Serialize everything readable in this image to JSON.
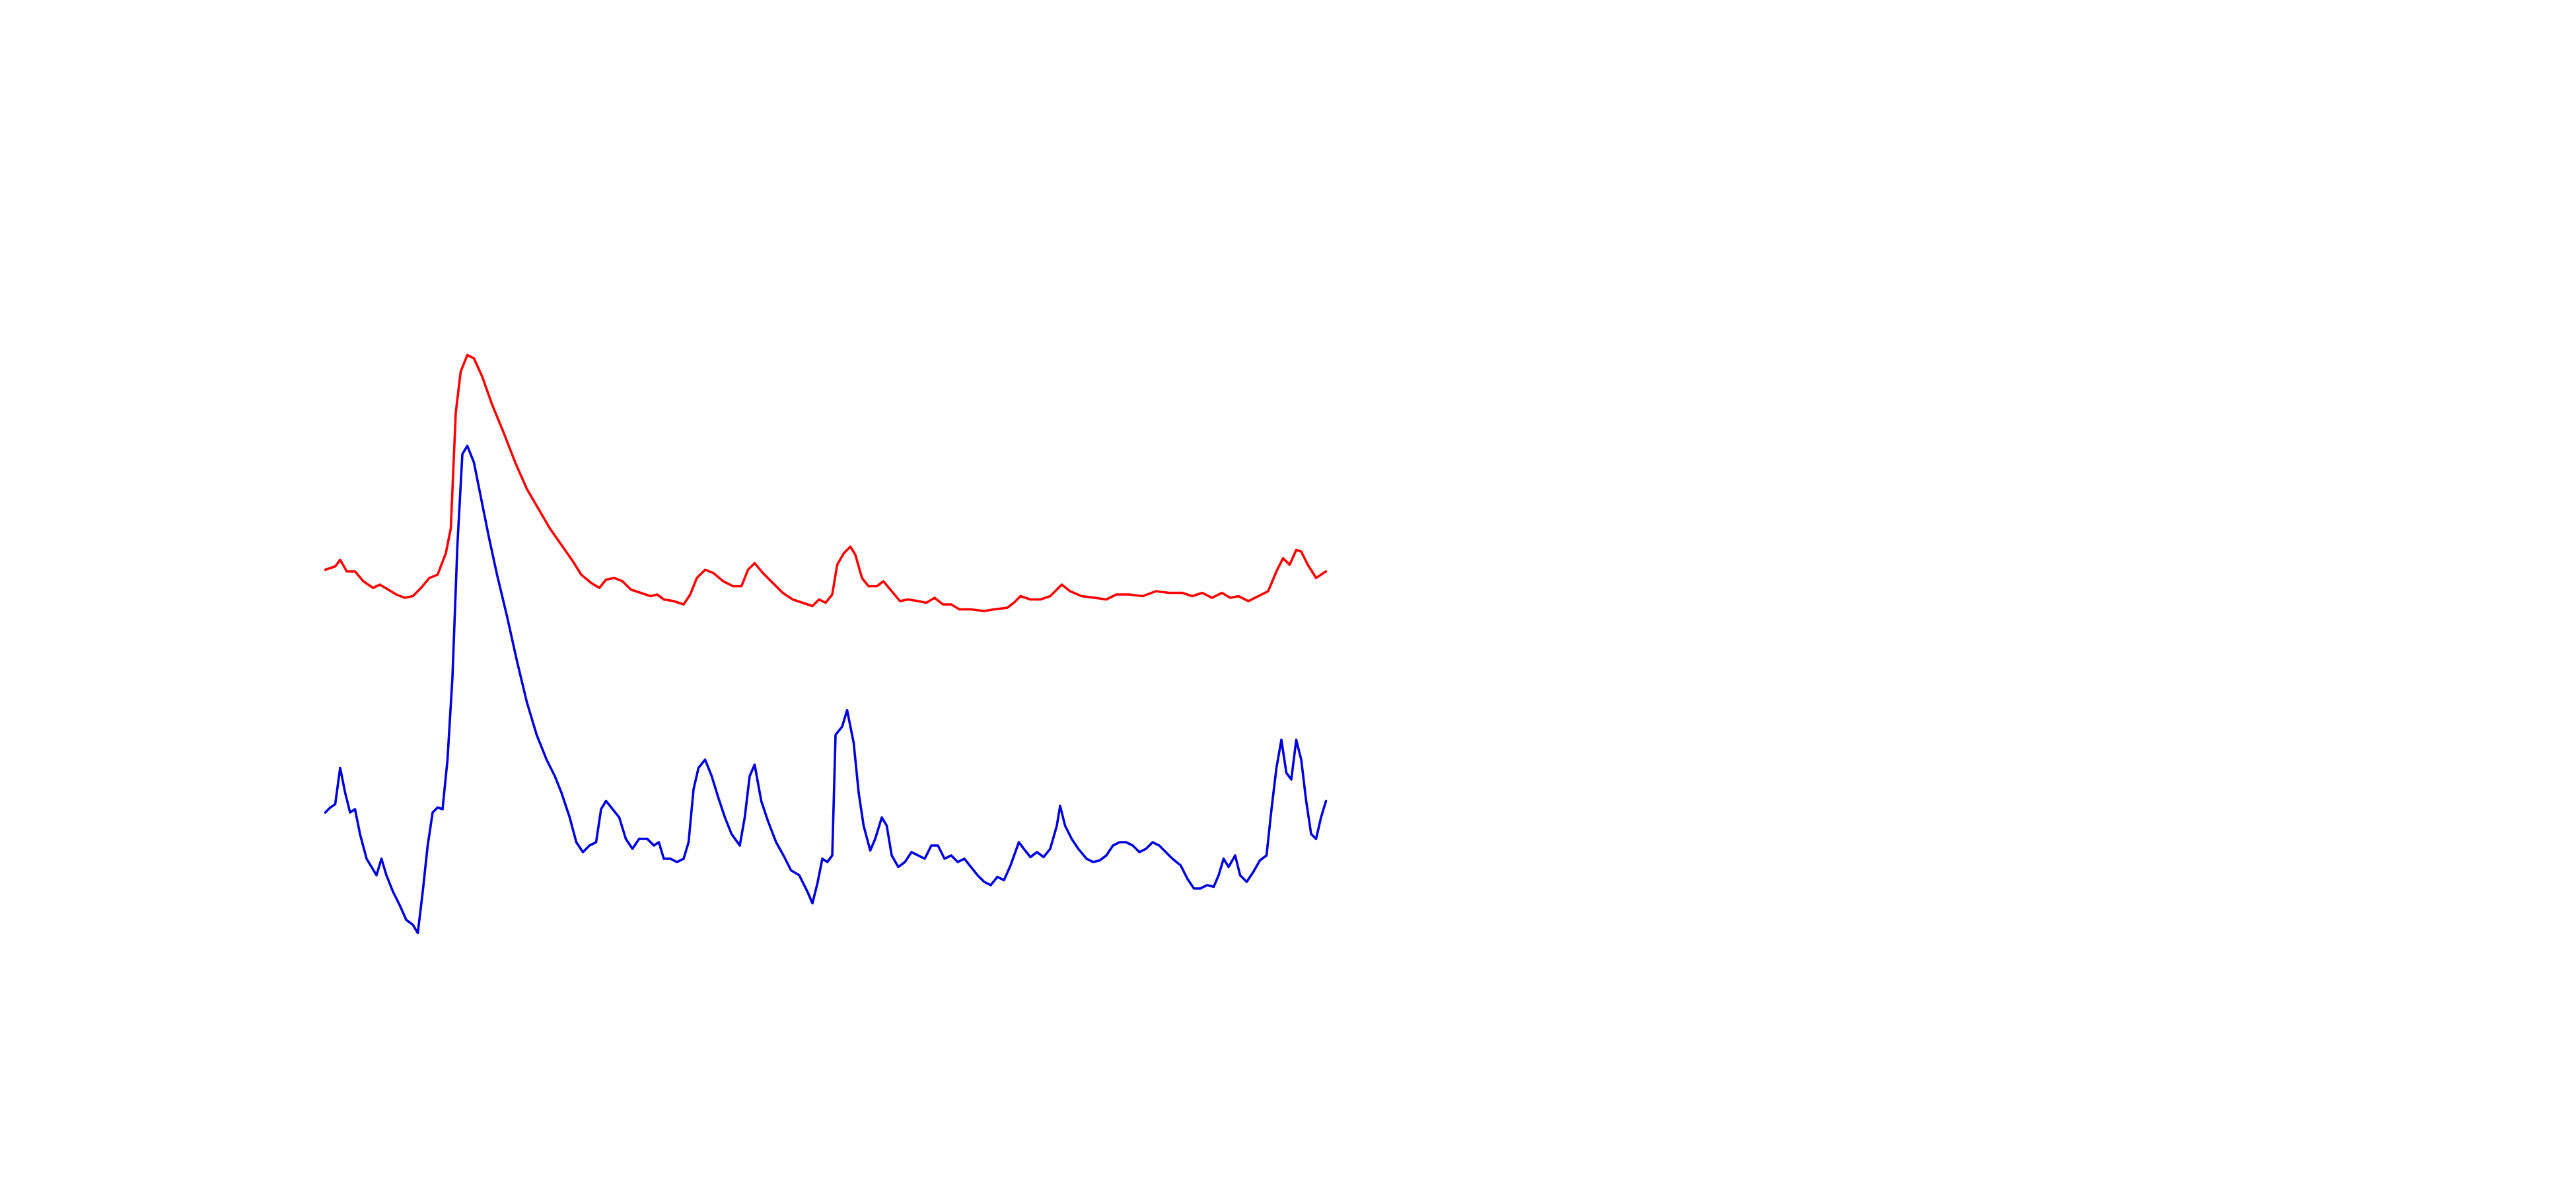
{
  "chart_data": {
    "type": "line",
    "xlim": [
      0,
      1560
    ],
    "ylim": [
      720,
      0
    ],
    "series": [
      {
        "color": "#ff0000",
        "x": [
          197,
          203,
          206,
          210,
          215,
          220,
          226,
          230,
          235,
          240,
          245,
          250,
          255,
          260,
          265,
          270,
          273,
          276,
          279,
          283,
          287,
          292,
          298,
          305,
          312,
          319,
          326,
          333,
          340,
          347,
          352,
          358,
          363,
          367,
          372,
          377,
          382,
          388,
          394,
          398,
          402,
          408,
          414,
          418,
          422,
          427,
          432,
          438,
          444,
          449,
          453,
          457,
          462,
          468,
          474,
          480,
          486,
          492,
          496,
          500,
          504,
          507,
          511,
          515,
          518,
          522,
          526,
          531,
          535,
          540,
          545,
          550,
          556,
          561,
          566,
          571,
          576,
          581,
          588,
          596,
          602,
          610,
          614,
          618,
          624,
          630,
          636,
          640,
          643,
          648,
          655,
          663,
          670,
          676,
          684,
          692,
          700,
          708,
          716,
          722,
          728,
          734,
          740,
          745,
          750,
          756,
          762,
          768,
          773,
          777,
          781,
          785,
          788,
          792,
          797,
          803
        ],
        "values": [
          345,
          343,
          339,
          346,
          346,
          352,
          356,
          354,
          357,
          360,
          362,
          361,
          356,
          350,
          348,
          335,
          320,
          250,
          225,
          215,
          217,
          228,
          245,
          262,
          280,
          296,
          308,
          320,
          330,
          340,
          348,
          353,
          356,
          351,
          350,
          352,
          357,
          359,
          361,
          360,
          363,
          364,
          366,
          360,
          350,
          345,
          347,
          352,
          355,
          355,
          345,
          341,
          347,
          353,
          359,
          363,
          365,
          367,
          363,
          365,
          360,
          342,
          335,
          331,
          336,
          350,
          355,
          355,
          352,
          358,
          364,
          363,
          364,
          365,
          362,
          366,
          366,
          369,
          369,
          370,
          369,
          368,
          365,
          361,
          363,
          363,
          361,
          357,
          354,
          358,
          361,
          362,
          363,
          360,
          360,
          361,
          358,
          359,
          359,
          361,
          359,
          362,
          359,
          362,
          361,
          364,
          361,
          358,
          346,
          338,
          342,
          333,
          334,
          342,
          350,
          346
        ]
      },
      {
        "color": "#0000dd",
        "x": [
          197,
          200,
          203,
          206,
          209,
          212,
          215,
          218,
          222,
          225,
          228,
          231,
          234,
          238,
          242,
          246,
          250,
          253,
          256,
          259,
          262,
          265,
          268,
          271,
          274,
          277,
          280,
          283,
          287,
          291,
          296,
          301,
          307,
          313,
          319,
          325,
          331,
          336,
          340,
          345,
          349,
          353,
          357,
          361,
          364,
          367,
          371,
          375,
          379,
          383,
          387,
          392,
          396,
          399,
          402,
          406,
          410,
          414,
          417,
          420,
          423,
          427,
          431,
          435,
          439,
          443,
          448,
          451,
          454,
          457,
          461,
          465,
          470,
          475,
          479,
          484,
          489,
          492,
          495,
          498,
          501,
          504,
          506,
          510,
          513,
          517,
          520,
          523,
          527,
          530,
          534,
          537,
          540,
          544,
          548,
          552,
          556,
          560,
          564,
          568,
          572,
          576,
          580,
          584,
          588,
          592,
          596,
          600,
          604,
          608,
          612,
          617,
          620,
          624,
          628,
          632,
          636,
          640,
          642,
          645,
          649,
          653,
          658,
          662,
          666,
          670,
          674,
          678,
          682,
          686,
          690,
          694,
          698,
          702,
          706,
          710,
          715,
          719,
          723,
          727,
          731,
          735,
          738,
          741,
          744,
          748,
          751,
          755,
          759,
          763,
          767,
          770,
          773,
          776,
          779,
          782,
          785,
          788,
          791,
          794,
          797,
          800,
          803
        ],
        "values": [
          492,
          489,
          487,
          465,
          480,
          492,
          490,
          505,
          520,
          525,
          530,
          520,
          530,
          540,
          548,
          557,
          560,
          565,
          540,
          512,
          492,
          489,
          490,
          460,
          410,
          330,
          275,
          270,
          280,
          300,
          325,
          348,
          373,
          400,
          425,
          445,
          460,
          470,
          480,
          495,
          510,
          516,
          512,
          510,
          490,
          485,
          490,
          495,
          508,
          514,
          508,
          508,
          512,
          510,
          520,
          520,
          522,
          520,
          510,
          478,
          465,
          460,
          470,
          483,
          495,
          505,
          512,
          495,
          470,
          463,
          485,
          497,
          510,
          519,
          527,
          530,
          540,
          547,
          535,
          520,
          522,
          518,
          445,
          440,
          430,
          450,
          480,
          500,
          515,
          508,
          495,
          500,
          518,
          525,
          522,
          516,
          518,
          520,
          512,
          512,
          520,
          518,
          522,
          520,
          525,
          530,
          534,
          536,
          531,
          533,
          524,
          510,
          514,
          519,
          516,
          519,
          514,
          500,
          488,
          500,
          508,
          514,
          520,
          522,
          521,
          518,
          512,
          510,
          510,
          512,
          516,
          514,
          510,
          512,
          516,
          520,
          524,
          532,
          538,
          538,
          536,
          537,
          530,
          520,
          525,
          518,
          530,
          534,
          528,
          521,
          518,
          490,
          465,
          448,
          468,
          472,
          448,
          460,
          485,
          505,
          508,
          495,
          485
        ]
      }
    ]
  }
}
